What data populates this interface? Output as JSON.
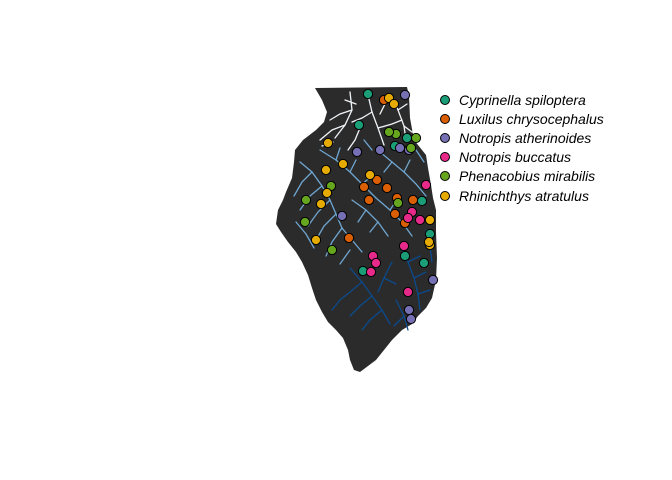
{
  "map": {
    "state_fill": "#2b2b2b",
    "river_colors": {
      "north": "#f0f4f8",
      "central": "#6fa6d1",
      "south": "#0b4a8c"
    }
  },
  "legend": {
    "items": [
      {
        "label": "Cyprinella spiloptera",
        "color": "#1b9e77"
      },
      {
        "label": "Luxilus chrysocephalus",
        "color": "#d95f02"
      },
      {
        "label": "Notropis atherinoides",
        "color": "#7570b3"
      },
      {
        "label": "Notropis buccatus",
        "color": "#e7298a"
      },
      {
        "label": "Phenacobius mirabilis",
        "color": "#66a61e"
      },
      {
        "label": "Rhinichthys atratulus",
        "color": "#e6ab02"
      }
    ]
  }
}
